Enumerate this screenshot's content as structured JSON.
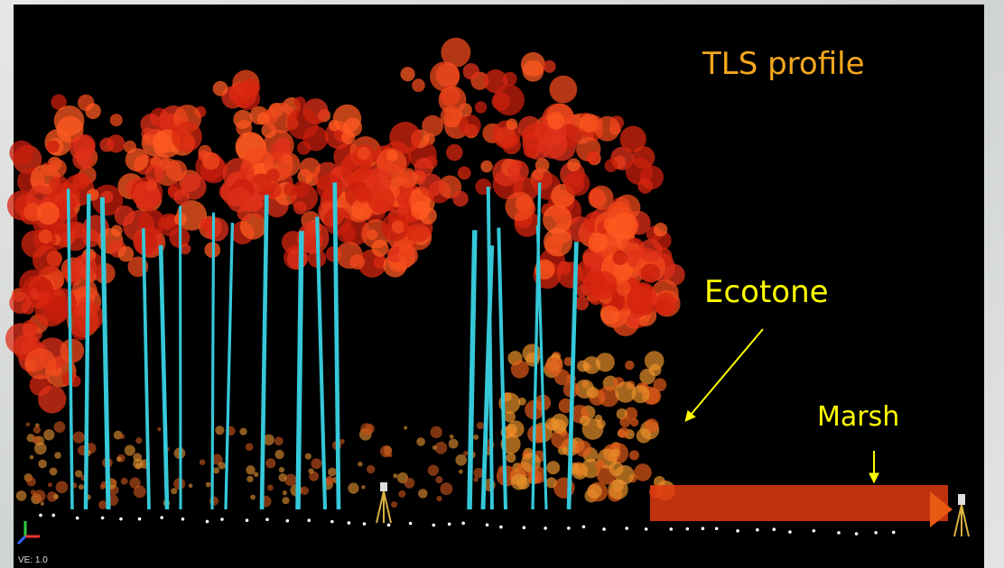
{
  "labels": {
    "title": "TLS profile",
    "ecotone": "Ecotone",
    "marsh": "Marsh",
    "scale": "VE: 1.0"
  }
}
